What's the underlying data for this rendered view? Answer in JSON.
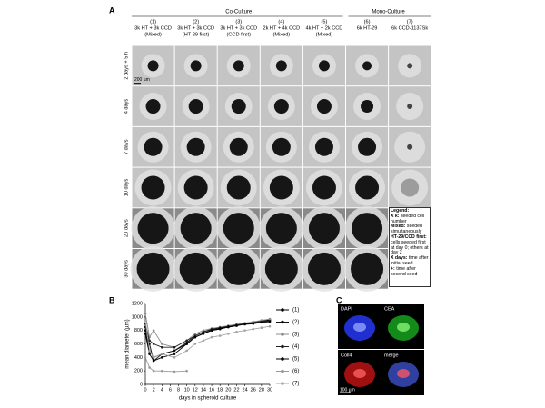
{
  "panel_a": {
    "letter": "A",
    "group_co": "Co-Culture",
    "group_mono": "Mono-Culture",
    "columns": [
      [
        "(1)",
        "3k HT + 3k CCD",
        "(Mixed)"
      ],
      [
        "(2)",
        "3k HT + 3k CCD",
        "(HT-29 first)"
      ],
      [
        "(3)",
        "3k HT + 3k CCD",
        "(CCD first)"
      ],
      [
        "(4)",
        "2k HT + 4k CCD",
        "(Mixed)"
      ],
      [
        "(5)",
        "4k HT + 2k CCD",
        "(Mixed)"
      ],
      [
        "(6)",
        "6k HT-29"
      ],
      [
        "(7)",
        "6k CCD-1137Sk"
      ]
    ],
    "rows": [
      "2 days + 5 h",
      "4 days",
      "7 days",
      "10 days",
      "20 days",
      "30 days"
    ],
    "scale_bar": "200 µm",
    "legend": [
      {
        "term": "Legend:",
        "text": ""
      },
      {
        "term": "X k:",
        "text": " seeded cell number"
      },
      {
        "term": "Mixed:",
        "text": " seeded simultaneously"
      },
      {
        "term": "HT-29/CCD first:",
        "text": " cells seeded first at day 0; others at day 2"
      },
      {
        "term": "X days:",
        "text": " time after initial seed"
      },
      {
        "term": "+:",
        "text": " time after second seed"
      }
    ]
  },
  "chart_data": {
    "type": "line",
    "letter": "B",
    "xlabel": "days in spheroid culture",
    "ylabel": "mean diameter (µm)",
    "x": [
      0,
      1,
      2,
      4,
      7,
      10,
      12,
      14,
      16,
      18,
      20,
      22,
      24,
      26,
      28,
      30
    ],
    "xlim": [
      0,
      30
    ],
    "xticks": [
      0,
      2,
      4,
      6,
      8,
      10,
      12,
      14,
      16,
      18,
      20,
      22,
      24,
      26,
      28,
      30
    ],
    "ylim": [
      0,
      1200
    ],
    "yticks": [
      0,
      200,
      400,
      600,
      800,
      1000,
      1200
    ],
    "series": [
      {
        "name": "(1)",
        "color": "#000000",
        "values": [
          800,
          500,
          400,
          450,
          500,
          600,
          700,
          750,
          800,
          820,
          850,
          870,
          900,
          920,
          930,
          950
        ]
      },
      {
        "name": "(2)",
        "color": "#111111",
        "values": [
          850,
          600,
          350,
          450,
          500,
          620,
          720,
          780,
          810,
          840,
          860,
          880,
          900,
          920,
          940,
          960
        ]
      },
      {
        "name": "(3)",
        "color": "#8c8c8c",
        "values": [
          1050,
          700,
          800,
          600,
          550,
          650,
          750,
          800,
          830,
          850,
          870,
          890,
          910,
          930,
          950,
          970
        ]
      },
      {
        "name": "(4)",
        "color": "#222222",
        "values": [
          900,
          650,
          600,
          550,
          550,
          650,
          720,
          780,
          820,
          840,
          860,
          880,
          900,
          910,
          930,
          940
        ]
      },
      {
        "name": "(5)",
        "color": "#000000",
        "values": [
          750,
          450,
          350,
          400,
          450,
          600,
          700,
          760,
          800,
          830,
          850,
          870,
          890,
          900,
          920,
          930
        ]
      },
      {
        "name": "(6)",
        "color": "#9a9a9a",
        "values": [
          400,
          250,
          200,
          200,
          190,
          200,
          null,
          null,
          null,
          null,
          null,
          null,
          null,
          null,
          null,
          null
        ]
      },
      {
        "name": "(7)",
        "color": "#a5a5a5",
        "values": [
          950,
          500,
          400,
          450,
          400,
          500,
          600,
          650,
          700,
          720,
          750,
          780,
          800,
          820,
          840,
          860
        ]
      }
    ]
  },
  "panel_c": {
    "letter": "C",
    "labels": [
      "DAPI",
      "CEA",
      "Coll4",
      "merge"
    ],
    "scale_bar": "100 µm"
  }
}
